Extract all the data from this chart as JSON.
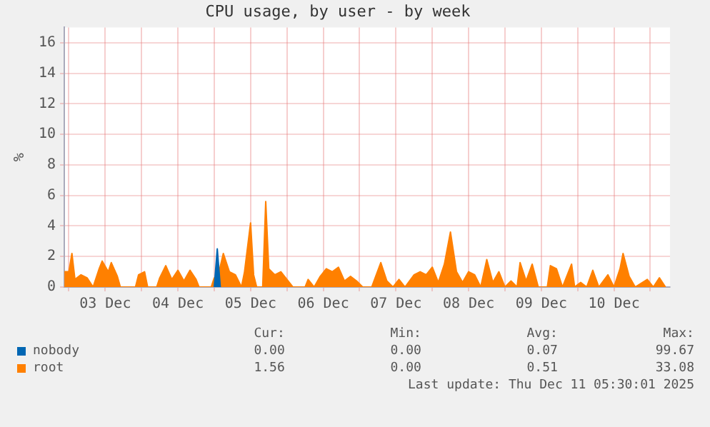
{
  "chart_data": {
    "type": "area",
    "title": "CPU usage, by user - by week",
    "ylabel": "%",
    "xlim": [
      "2025-12-02T22:30",
      "2025-12-11T06:30"
    ],
    "xticks": [
      {
        "value": "2025-12-03T00:00",
        "label": null
      },
      {
        "value": "2025-12-03T12:00",
        "label": "03 Dec"
      },
      {
        "value": "2025-12-04T00:00",
        "label": null
      },
      {
        "value": "2025-12-04T12:00",
        "label": "04 Dec"
      },
      {
        "value": "2025-12-05T00:00",
        "label": null
      },
      {
        "value": "2025-12-05T12:00",
        "label": "05 Dec"
      },
      {
        "value": "2025-12-06T00:00",
        "label": null
      },
      {
        "value": "2025-12-06T12:00",
        "label": "06 Dec"
      },
      {
        "value": "2025-12-07T00:00",
        "label": null
      },
      {
        "value": "2025-12-07T12:00",
        "label": "07 Dec"
      },
      {
        "value": "2025-12-08T00:00",
        "label": null
      },
      {
        "value": "2025-12-08T12:00",
        "label": "08 Dec"
      },
      {
        "value": "2025-12-09T00:00",
        "label": null
      },
      {
        "value": "2025-12-09T12:00",
        "label": "09 Dec"
      },
      {
        "value": "2025-12-10T00:00",
        "label": null
      },
      {
        "value": "2025-12-10T12:00",
        "label": "10 Dec"
      },
      {
        "value": "2025-12-11T00:00",
        "label": null
      }
    ],
    "ylim": [
      0,
      17
    ],
    "yticks": [
      0,
      2,
      4,
      6,
      8,
      10,
      12,
      14,
      16
    ],
    "grid": true,
    "legend": "bottom",
    "series": [
      {
        "name": "nobody",
        "color": "#0066b3",
        "x": [
          "2025-12-05T00:00",
          "2025-12-05T01:00",
          "2025-12-05T02:00"
        ],
        "values": [
          0,
          2.5,
          0
        ]
      },
      {
        "name": "root",
        "color": "#ff8000",
        "x": [
          "2025-12-02T22:30",
          "2025-12-03T00:00",
          "2025-12-03T01:00",
          "2025-12-03T02:00",
          "2025-12-03T04:00",
          "2025-12-03T06:00",
          "2025-12-03T08:00",
          "2025-12-03T10:00",
          "2025-12-03T11:00",
          "2025-12-03T13:00",
          "2025-12-03T14:00",
          "2025-12-03T16:00",
          "2025-12-03T17:00",
          "2025-12-03T22:00",
          "2025-12-03T23:00",
          "2025-12-04T01:00",
          "2025-12-04T02:00",
          "2025-12-04T05:00",
          "2025-12-04T06:00",
          "2025-12-04T08:00",
          "2025-12-04T10:00",
          "2025-12-04T12:00",
          "2025-12-04T14:00",
          "2025-12-04T16:00",
          "2025-12-04T18:00",
          "2025-12-04T19:00",
          "2025-12-04T23:00",
          "2025-12-05T00:00",
          "2025-12-05T01:00",
          "2025-12-05T03:00",
          "2025-12-05T05:00",
          "2025-12-05T07:00",
          "2025-12-05T09:00",
          "2025-12-05T10:00",
          "2025-12-05T12:00",
          "2025-12-05T13:00",
          "2025-12-05T14:00",
          "2025-12-05T16:00",
          "2025-12-05T17:00",
          "2025-12-05T18:00",
          "2025-12-05T20:00",
          "2025-12-05T22:00",
          "2025-12-06T00:00",
          "2025-12-06T02:00",
          "2025-12-06T06:00",
          "2025-12-06T07:00",
          "2025-12-06T09:00",
          "2025-12-06T11:00",
          "2025-12-06T13:00",
          "2025-12-06T15:00",
          "2025-12-06T17:00",
          "2025-12-06T19:00",
          "2025-12-06T21:00",
          "2025-12-06T23:00",
          "2025-12-07T01:00",
          "2025-12-07T04:00",
          "2025-12-07T07:00",
          "2025-12-07T09:00",
          "2025-12-07T11:00",
          "2025-12-07T13:00",
          "2025-12-07T15:00",
          "2025-12-07T18:00",
          "2025-12-07T20:00",
          "2025-12-07T22:00",
          "2025-12-08T00:00",
          "2025-12-08T02:00",
          "2025-12-08T04:00",
          "2025-12-08T06:00",
          "2025-12-08T08:00",
          "2025-12-08T10:00",
          "2025-12-08T12:00",
          "2025-12-08T14:00",
          "2025-12-08T16:00",
          "2025-12-08T18:00",
          "2025-12-08T20:00",
          "2025-12-08T22:00",
          "2025-12-09T00:00",
          "2025-12-09T02:00",
          "2025-12-09T04:00",
          "2025-12-09T05:00",
          "2025-12-09T07:00",
          "2025-12-09T09:00",
          "2025-12-09T11:00",
          "2025-12-09T14:00",
          "2025-12-09T15:00",
          "2025-12-09T17:00",
          "2025-12-09T19:00",
          "2025-12-09T22:00",
          "2025-12-09T23:00",
          "2025-12-10T01:00",
          "2025-12-10T03:00",
          "2025-12-10T05:00",
          "2025-12-10T07:00",
          "2025-12-10T10:00",
          "2025-12-10T12:00",
          "2025-12-10T14:00",
          "2025-12-10T15:00",
          "2025-12-10T17:00",
          "2025-12-10T19:00",
          "2025-12-10T23:00",
          "2025-12-11T01:00",
          "2025-12-11T03:00",
          "2025-12-11T05:00"
        ],
        "values": [
          1.0,
          1.0,
          2.2,
          0.5,
          0.8,
          0.6,
          0,
          1.2,
          1.7,
          1.0,
          1.6,
          0.7,
          0,
          0,
          0.8,
          1.0,
          0,
          0,
          0.6,
          1.4,
          0.5,
          1.1,
          0.4,
          1.1,
          0.5,
          0,
          0,
          0.6,
          0.5,
          2.2,
          1.0,
          0.8,
          0,
          1.0,
          4.2,
          0.8,
          0,
          0,
          5.6,
          1.2,
          0.8,
          1.0,
          0.5,
          0,
          0,
          0.5,
          0,
          0.7,
          1.2,
          1.0,
          1.3,
          0.4,
          0.7,
          0.4,
          0,
          0,
          1.6,
          0.4,
          0,
          0.5,
          0,
          0.8,
          1.0,
          0.8,
          1.3,
          0.3,
          1.5,
          3.6,
          1.0,
          0.3,
          1.0,
          0.8,
          0,
          1.8,
          0.3,
          1.0,
          0,
          0.4,
          0,
          1.6,
          0.4,
          1.5,
          0,
          0,
          1.4,
          1.2,
          0,
          1.5,
          0,
          0.3,
          0,
          1.1,
          0,
          0.8,
          0,
          1.2,
          2.2,
          0.7,
          0,
          0.5,
          0,
          0.6,
          0
        ]
      }
    ],
    "annotations": [
      "Cur:",
      "Min:",
      "Avg:",
      "Max:",
      "0.00",
      "0.00",
      "0.07",
      "99.67",
      "1.56",
      "0.00",
      "0.51",
      "33.08",
      "Last update: Thu Dec 11 05:30:01 2025"
    ]
  }
}
